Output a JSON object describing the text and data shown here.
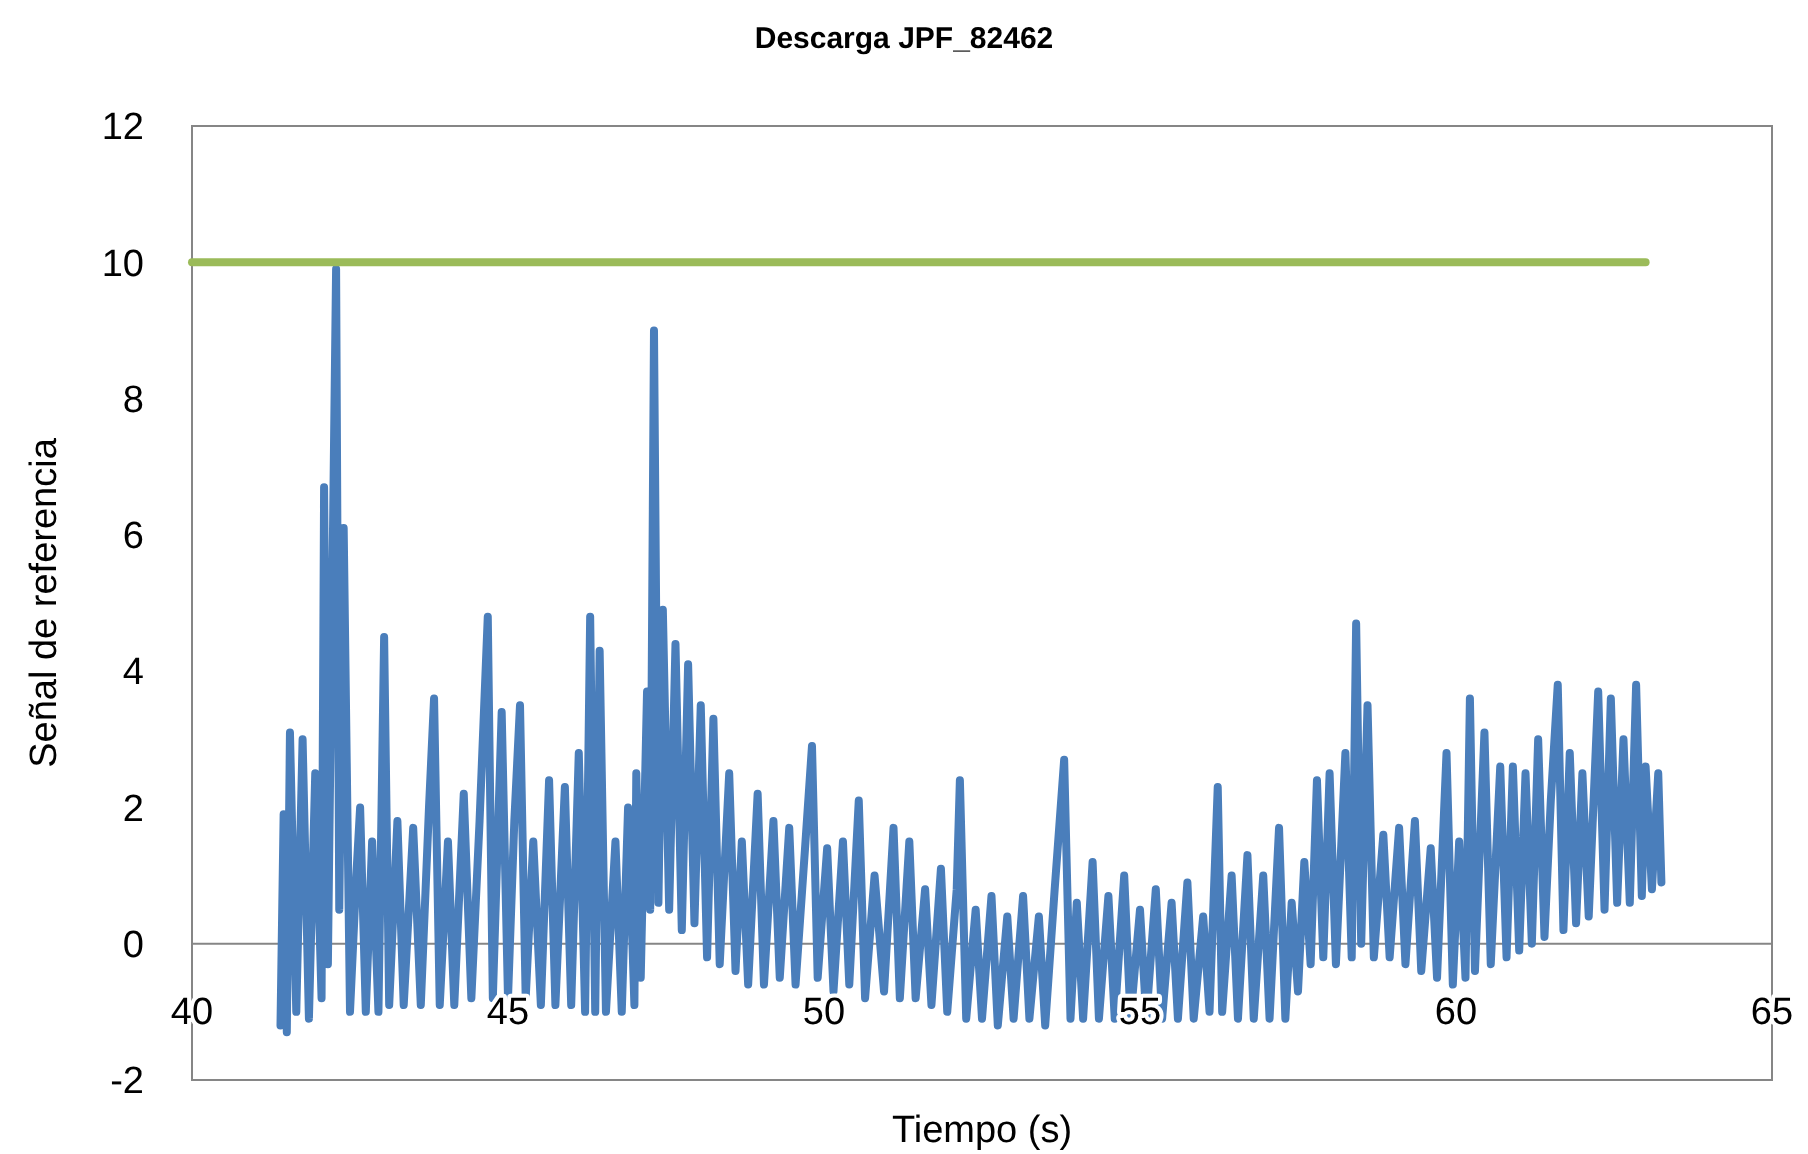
{
  "chart_data": {
    "type": "line",
    "title": "Descarga JPF_82462",
    "xlabel": "Tiempo (s)",
    "ylabel": "Señal de referencia",
    "xlim": [
      40,
      65
    ],
    "xticks": [
      40,
      45,
      50,
      55,
      60,
      65
    ],
    "ylim": [
      -2,
      12
    ],
    "yticks": [
      -2,
      0,
      2,
      4,
      6,
      8,
      10,
      12
    ],
    "grid": false,
    "line_style": "solid",
    "marker": "none",
    "series": [
      {
        "color": "#4a7ebb",
        "x": [
          41.4,
          41.45,
          41.5,
          41.55,
          41.65,
          41.75,
          41.85,
          41.95,
          42.05,
          42.09,
          42.15,
          42.28,
          42.33,
          42.4,
          42.5,
          42.6,
          42.66,
          42.75,
          42.85,
          42.95,
          43.04,
          43.12,
          43.25,
          43.35,
          43.5,
          43.62,
          43.75,
          43.83,
          43.92,
          44.05,
          44.15,
          44.3,
          44.42,
          44.55,
          44.68,
          44.76,
          44.9,
          45.0,
          45.1,
          45.19,
          45.28,
          45.4,
          45.52,
          45.65,
          45.75,
          45.9,
          46.0,
          46.12,
          46.22,
          46.3,
          46.38,
          46.45,
          46.55,
          46.7,
          46.8,
          46.9,
          47.0,
          47.03,
          47.1,
          47.2,
          47.25,
          47.31,
          47.38,
          47.45,
          47.55,
          47.65,
          47.75,
          47.85,
          47.95,
          48.05,
          48.15,
          48.25,
          48.35,
          48.5,
          48.6,
          48.7,
          48.8,
          48.95,
          49.05,
          49.2,
          49.3,
          49.45,
          49.55,
          49.7,
          49.81,
          49.9,
          50.05,
          50.15,
          50.3,
          50.4,
          50.55,
          50.65,
          50.8,
          50.95,
          51.1,
          51.2,
          51.35,
          51.45,
          51.6,
          51.7,
          51.85,
          51.95,
          52.1,
          52.15,
          52.25,
          52.4,
          52.5,
          52.65,
          52.75,
          52.9,
          53.0,
          53.15,
          53.25,
          53.4,
          53.5,
          53.65,
          53.8,
          53.9,
          54.0,
          54.1,
          54.25,
          54.35,
          54.5,
          54.6,
          54.75,
          54.85,
          55.0,
          55.1,
          55.25,
          55.35,
          55.5,
          55.6,
          55.75,
          55.85,
          56.0,
          56.1,
          56.23,
          56.3,
          56.45,
          56.55,
          56.7,
          56.8,
          56.95,
          57.05,
          57.2,
          57.3,
          57.4,
          57.5,
          57.6,
          57.7,
          57.8,
          57.9,
          58.0,
          58.1,
          58.25,
          58.35,
          58.42,
          58.5,
          58.6,
          58.7,
          58.85,
          58.95,
          59.1,
          59.2,
          59.35,
          59.45,
          59.6,
          59.7,
          59.85,
          59.95,
          60.05,
          60.15,
          60.22,
          60.3,
          60.45,
          60.55,
          60.7,
          60.8,
          60.9,
          61.0,
          61.1,
          61.2,
          61.3,
          61.4,
          61.5,
          61.61,
          61.7,
          61.8,
          61.9,
          62.0,
          62.1,
          62.25,
          62.35,
          62.45,
          62.55,
          62.65,
          62.75,
          62.85,
          62.94,
          63.0,
          63.1,
          63.2,
          63.25
        ],
        "values": [
          -1.2,
          1.9,
          -1.3,
          3.1,
          -1.0,
          3.0,
          -1.1,
          2.5,
          -0.8,
          6.7,
          -0.3,
          9.9,
          0.5,
          6.1,
          -1.0,
          1.0,
          2.0,
          -1.0,
          1.5,
          -1.0,
          4.5,
          -0.9,
          1.8,
          -0.9,
          1.7,
          -0.9,
          2.0,
          3.6,
          -0.9,
          1.5,
          -0.9,
          2.2,
          -0.8,
          1.8,
          4.8,
          -0.8,
          3.4,
          -0.8,
          1.8,
          3.5,
          -0.8,
          1.5,
          -0.9,
          2.4,
          -0.9,
          2.3,
          -0.9,
          2.8,
          -1.0,
          4.8,
          -1.0,
          4.3,
          -1.0,
          1.5,
          -1.0,
          2.0,
          -0.9,
          2.5,
          -0.5,
          3.7,
          0.5,
          9.0,
          0.6,
          4.9,
          0.5,
          4.4,
          0.2,
          4.1,
          0.3,
          3.5,
          -0.2,
          3.3,
          -0.3,
          2.5,
          -0.4,
          1.5,
          -0.6,
          2.2,
          -0.6,
          1.8,
          -0.5,
          1.7,
          -0.6,
          1.4,
          2.9,
          -0.5,
          1.4,
          -0.7,
          1.5,
          -0.6,
          2.1,
          -0.8,
          1.0,
          -0.7,
          1.7,
          -0.8,
          1.5,
          -0.8,
          0.8,
          -0.9,
          1.1,
          -1.0,
          0.8,
          2.4,
          -1.1,
          0.5,
          -1.1,
          0.7,
          -1.2,
          0.4,
          -1.1,
          0.7,
          -1.1,
          0.4,
          -1.2,
          0.8,
          2.7,
          -1.1,
          0.6,
          -1.1,
          1.2,
          -1.1,
          0.7,
          -1.1,
          1.0,
          -1.1,
          0.5,
          -1.1,
          0.8,
          -1.1,
          0.6,
          -1.1,
          0.9,
          -1.1,
          0.4,
          -1.0,
          2.3,
          -1.0,
          1.0,
          -1.1,
          1.3,
          -1.1,
          1.0,
          -1.1,
          1.7,
          -1.1,
          0.6,
          -0.7,
          1.2,
          -0.3,
          2.4,
          -0.2,
          2.5,
          -0.3,
          2.8,
          -0.2,
          4.7,
          0.0,
          3.5,
          -0.2,
          1.6,
          -0.2,
          1.7,
          -0.3,
          1.8,
          -0.4,
          1.4,
          -0.5,
          2.8,
          -0.6,
          1.5,
          -0.5,
          3.6,
          -0.4,
          3.1,
          -0.3,
          2.6,
          -0.2,
          2.6,
          -0.1,
          2.5,
          0.0,
          3.0,
          0.1,
          2.1,
          3.8,
          0.2,
          2.8,
          0.3,
          2.5,
          0.4,
          3.7,
          0.5,
          3.6,
          0.6,
          3.0,
          0.6,
          3.8,
          0.7,
          2.6,
          0.8,
          2.5,
          0.9
        ]
      },
      {
        "color": "#9bbb59",
        "x": [
          40,
          63
        ],
        "values": [
          10,
          10
        ]
      }
    ]
  }
}
